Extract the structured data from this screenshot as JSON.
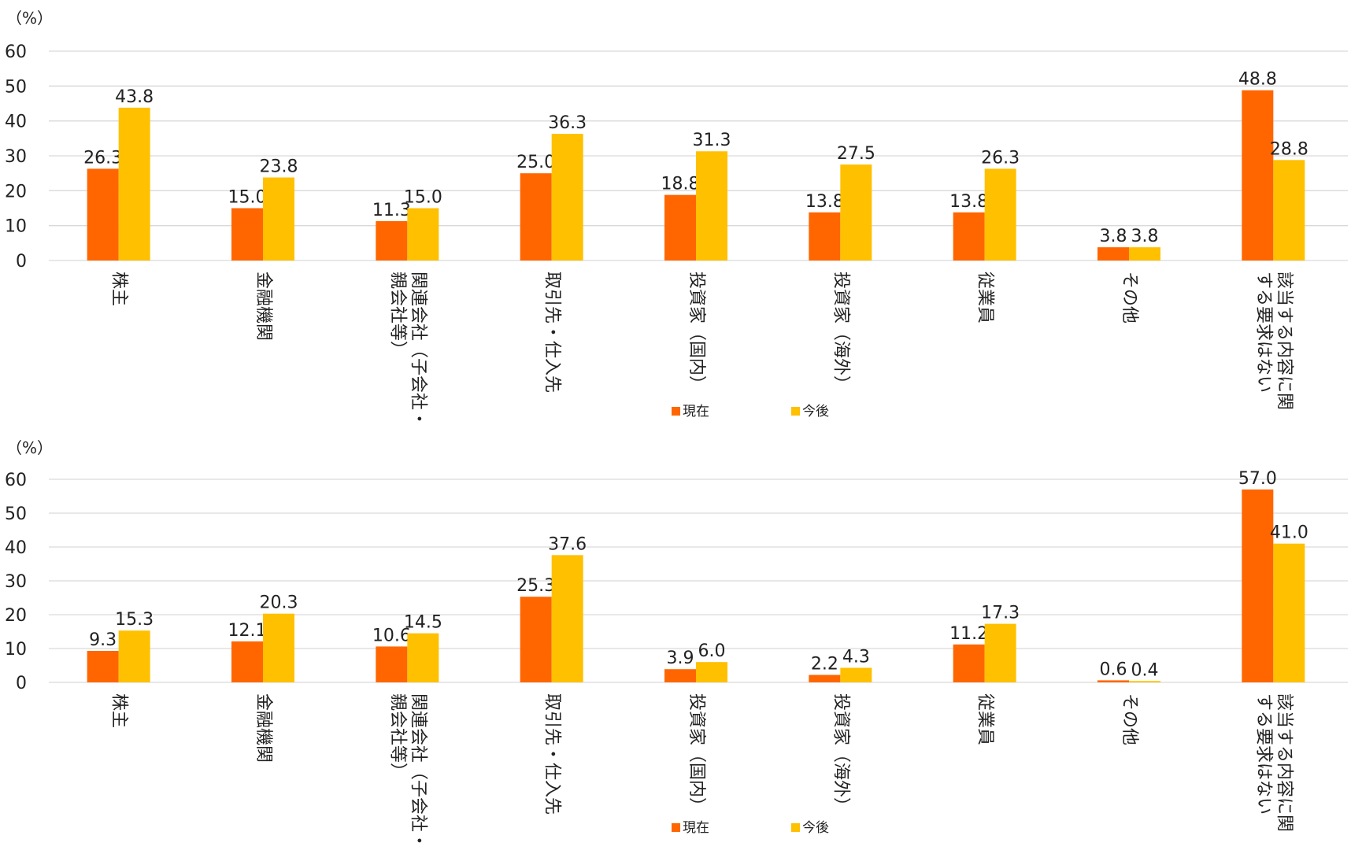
{
  "chart_data": [
    {
      "type": "bar",
      "unit_label": "（%）",
      "ylim": [
        0,
        60
      ],
      "yticks": [
        0,
        10,
        20,
        30,
        40,
        50,
        60
      ],
      "grid": true,
      "legend_position": "bottom-center",
      "categories": [
        "株主",
        "金融機関",
        "関連会社（子会社・親会社等）",
        "取引先・仕入先",
        "投資家（国内）",
        "投資家（海外）",
        "従業員",
        "その他",
        "該当する内容に関する要求はない"
      ],
      "category_label_lines": [
        [
          "株主"
        ],
        [
          "金融機関"
        ],
        [
          "関連会社（子会社・",
          "親会社等）"
        ],
        [
          "取引先・仕入先"
        ],
        [
          "投資家（国内）"
        ],
        [
          "投資家（海外）"
        ],
        [
          "従業員"
        ],
        [
          "その他"
        ],
        [
          "該当する内容に関",
          "する要求はない"
        ]
      ],
      "series": [
        {
          "name": "現在",
          "color": "#FF6600",
          "values": [
            26.3,
            15.0,
            11.3,
            25.0,
            18.8,
            13.8,
            13.8,
            3.8,
            48.8
          ],
          "labels": [
            "26.3",
            "15.0",
            "11.3",
            "25.0",
            "18.8",
            "13.8",
            "13.8",
            "3.8",
            "48.8"
          ]
        },
        {
          "name": "今後",
          "color": "#FFC000",
          "values": [
            43.8,
            23.8,
            15.0,
            36.3,
            31.3,
            27.5,
            26.3,
            3.8,
            28.8
          ],
          "labels": [
            "43.8",
            "23.8",
            "15.0",
            "36.3",
            "31.3",
            "27.5",
            "26.3",
            "3.8",
            "28.8"
          ]
        }
      ]
    },
    {
      "type": "bar",
      "unit_label": "（%）",
      "ylim": [
        0,
        60
      ],
      "yticks": [
        0,
        10,
        20,
        30,
        40,
        50,
        60
      ],
      "grid": true,
      "legend_position": "bottom-center",
      "categories": [
        "株主",
        "金融機関",
        "関連会社（子会社・親会社等）",
        "取引先・仕入先",
        "投資家（国内）",
        "投資家（海外）",
        "従業員",
        "その他",
        "該当する内容に関する要求はない"
      ],
      "category_label_lines": [
        [
          "株主"
        ],
        [
          "金融機関"
        ],
        [
          "関連会社（子会社・",
          "親会社等）"
        ],
        [
          "取引先・仕入先"
        ],
        [
          "投資家（国内）"
        ],
        [
          "投資家（海外）"
        ],
        [
          "従業員"
        ],
        [
          "その他"
        ],
        [
          "該当する内容に関",
          "する要求はない"
        ]
      ],
      "series": [
        {
          "name": "現在",
          "color": "#FF6600",
          "values": [
            9.3,
            12.1,
            10.6,
            25.3,
            3.9,
            2.2,
            11.2,
            0.6,
            57.0
          ],
          "labels": [
            "9.3",
            "12.1",
            "10.6",
            "25.3",
            "3.9",
            "2.2",
            "11.2",
            "0.6",
            "57.0"
          ]
        },
        {
          "name": "今後",
          "color": "#FFC000",
          "values": [
            15.3,
            20.3,
            14.5,
            37.6,
            6.0,
            4.3,
            17.3,
            0.4,
            41.0
          ],
          "labels": [
            "15.3",
            "20.3",
            "14.5",
            "37.6",
            "6.0",
            "4.3",
            "17.3",
            "0.4",
            "41.0"
          ]
        }
      ]
    }
  ]
}
